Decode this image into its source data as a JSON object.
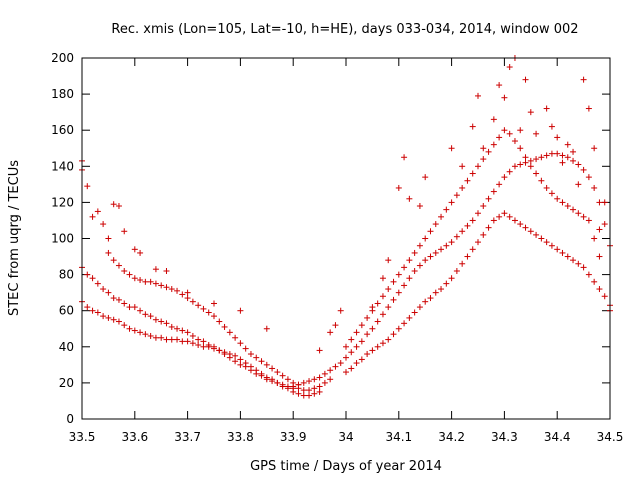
{
  "chart_data": {
    "type": "scatter",
    "title": "Rec. xmis (Lon=105, Lat=-10, h=HE), days 033-034, 2014, window 002",
    "xlabel": "GPS time / Days of year 2014",
    "ylabel": "STEC from uqrg / TECUs",
    "xlim": [
      33.5,
      34.5
    ],
    "ylim": [
      0,
      200
    ],
    "x_ticks": [
      "33.5",
      "33.6",
      "33.7",
      "33.8",
      "33.9",
      "34",
      "34.1",
      "34.2",
      "34.3",
      "34.4",
      "34.5"
    ],
    "y_ticks": [
      "0",
      "20",
      "40",
      "60",
      "80",
      "100",
      "120",
      "140",
      "160",
      "180",
      "200"
    ],
    "grid": false,
    "marker": "+",
    "color": "#cc0000",
    "series": [
      {
        "x": [
          33.5,
          33.51,
          33.52,
          33.53,
          33.54,
          33.55,
          33.56,
          33.57,
          33.58,
          33.59,
          33.6,
          33.61,
          33.62,
          33.63,
          33.64,
          33.65,
          33.66,
          33.67,
          33.68,
          33.69,
          33.7,
          33.71,
          33.72,
          33.73,
          33.74,
          33.75,
          33.76,
          33.77,
          33.78,
          33.79,
          33.8,
          33.81,
          33.82,
          33.83,
          33.84,
          33.85,
          33.86,
          33.87,
          33.88,
          33.89,
          33.9,
          33.91,
          33.92,
          33.93,
          33.94,
          33.95,
          33.96,
          33.97
        ],
        "y": [
          84,
          80,
          78,
          75,
          72,
          70,
          67,
          66,
          64,
          62,
          62,
          60,
          58,
          57,
          55,
          54,
          53,
          51,
          50,
          49,
          48,
          46,
          44,
          43,
          41,
          40,
          38,
          36,
          34,
          32,
          30,
          29,
          27,
          25,
          24,
          22,
          21,
          20,
          19,
          18,
          17,
          17,
          16,
          16,
          17,
          18,
          20,
          22
        ]
      },
      {
        "x": [
          33.5,
          33.51,
          33.52,
          33.53,
          33.54,
          33.55,
          33.56,
          33.57,
          33.58,
          33.59,
          33.6,
          33.61,
          33.62,
          33.63,
          33.64,
          33.65,
          33.66,
          33.67,
          33.68,
          33.69,
          33.7,
          33.71,
          33.72,
          33.73,
          33.74,
          33.75,
          33.76,
          33.77,
          33.78,
          33.79,
          33.8,
          33.81,
          33.82,
          33.83,
          33.84,
          33.85,
          33.86,
          33.87,
          33.88,
          33.89,
          33.9,
          33.91,
          33.92,
          33.93,
          33.94,
          33.95
        ],
        "y": [
          65,
          62,
          60,
          59,
          57,
          56,
          55,
          54,
          52,
          50,
          49,
          48,
          47,
          46,
          45,
          45,
          44,
          44,
          44,
          43,
          43,
          42,
          41,
          40,
          40,
          39,
          38,
          37,
          36,
          35,
          33,
          31,
          29,
          27,
          25,
          23,
          22,
          20,
          18,
          17,
          15,
          14,
          13,
          13,
          14,
          15
        ]
      },
      {
        "x": [
          33.55,
          33.56,
          33.57,
          33.58,
          33.59,
          33.6,
          33.61,
          33.62,
          33.63,
          33.64,
          33.65,
          33.66,
          33.67,
          33.68,
          33.69,
          33.7,
          33.71,
          33.72,
          33.73,
          33.74,
          33.75,
          33.76,
          33.77,
          33.78,
          33.79,
          33.8,
          33.81,
          33.82,
          33.83,
          33.84,
          33.85,
          33.86,
          33.87,
          33.88,
          33.89,
          33.9,
          33.91
        ],
        "y": [
          92,
          88,
          85,
          82,
          80,
          78,
          77,
          76,
          76,
          75,
          74,
          73,
          72,
          71,
          69,
          67,
          65,
          63,
          61,
          59,
          57,
          54,
          51,
          48,
          45,
          42,
          39,
          36,
          34,
          32,
          30,
          28,
          26,
          24,
          22,
          20,
          19
        ]
      },
      {
        "x": [
          33.9,
          33.91,
          33.92,
          33.93,
          33.94,
          33.95,
          33.96,
          33.97,
          33.98,
          33.99,
          34.0,
          34.01,
          34.02,
          34.03,
          34.04,
          34.05,
          34.06,
          34.07,
          34.08,
          34.09,
          34.1,
          34.11,
          34.12,
          34.13,
          34.14,
          34.15,
          34.16,
          34.17,
          34.18,
          34.19,
          34.2,
          34.21,
          34.22,
          34.23,
          34.24,
          34.25,
          34.26,
          34.27,
          34.28,
          34.29,
          34.3,
          34.31,
          34.32,
          34.33,
          34.34,
          34.35,
          34.36,
          34.37,
          34.38,
          34.39,
          34.4,
          34.41,
          34.42,
          34.43,
          34.44,
          34.45,
          34.46,
          34.47,
          34.48,
          34.49,
          34.5
        ],
        "y": [
          18,
          19,
          20,
          21,
          22,
          23,
          25,
          27,
          29,
          31,
          34,
          37,
          40,
          43,
          47,
          50,
          54,
          58,
          62,
          66,
          70,
          74,
          78,
          82,
          85,
          88,
          90,
          92,
          94,
          96,
          98,
          101,
          104,
          107,
          110,
          114,
          118,
          122,
          126,
          130,
          134,
          137,
          140,
          141,
          142,
          143,
          144,
          145,
          146,
          147,
          147,
          146,
          145,
          143,
          141,
          138,
          134,
          128,
          120,
          108,
          96
        ]
      },
      {
        "x": [
          34.0,
          34.01,
          34.02,
          34.03,
          34.04,
          34.05,
          34.06,
          34.07,
          34.08,
          34.09,
          34.1,
          34.11,
          34.12,
          34.13,
          34.14,
          34.15,
          34.16,
          34.17,
          34.18,
          34.19,
          34.2,
          34.21,
          34.22,
          34.23,
          34.24,
          34.25,
          34.26,
          34.27,
          34.28,
          34.29,
          34.3,
          34.31,
          34.32,
          34.33,
          34.34,
          34.35,
          34.36,
          34.37,
          34.38,
          34.39,
          34.4,
          34.41,
          34.42,
          34.43,
          34.44,
          34.45,
          34.46,
          34.47,
          34.48,
          34.49,
          34.5
        ],
        "y": [
          26,
          28,
          31,
          33,
          36,
          38,
          40,
          42,
          44,
          47,
          50,
          53,
          56,
          59,
          62,
          65,
          67,
          70,
          72,
          75,
          78,
          82,
          86,
          90,
          94,
          98,
          102,
          106,
          110,
          112,
          114,
          112,
          110,
          108,
          106,
          104,
          102,
          100,
          98,
          96,
          94,
          92,
          90,
          88,
          86,
          84,
          80,
          76,
          72,
          68,
          63
        ]
      },
      {
        "x": [
          34.0,
          34.01,
          34.02,
          34.03,
          34.04,
          34.05,
          34.06,
          34.07,
          34.08,
          34.09,
          34.1,
          34.11,
          34.12,
          34.13,
          34.14,
          34.15,
          34.16,
          34.17,
          34.18,
          34.19,
          34.2,
          34.21,
          34.22,
          34.23,
          34.24,
          34.25,
          34.26,
          34.27,
          34.28,
          34.29,
          34.3,
          34.31,
          34.32,
          34.33,
          34.34,
          34.35,
          34.36,
          34.37,
          34.38,
          34.39,
          34.4,
          34.41,
          34.42,
          34.43,
          34.44,
          34.45,
          34.46,
          34.47,
          34.48
        ],
        "y": [
          40,
          44,
          48,
          52,
          56,
          60,
          64,
          68,
          72,
          76,
          80,
          84,
          88,
          92,
          96,
          100,
          104,
          108,
          112,
          116,
          120,
          124,
          128,
          132,
          136,
          140,
          144,
          148,
          152,
          156,
          160,
          158,
          154,
          150,
          145,
          140,
          136,
          132,
          128,
          125,
          122,
          120,
          118,
          116,
          114,
          112,
          110,
          100,
          90
        ]
      },
      {
        "x": [
          33.5,
          33.5,
          33.51,
          33.52,
          33.53,
          33.54,
          33.55,
          33.56,
          33.57,
          33.58,
          33.6,
          33.61,
          33.64,
          33.66,
          33.7,
          33.75,
          33.8,
          33.85,
          33.95,
          33.97,
          33.98,
          33.99,
          34.05,
          34.07,
          34.08,
          34.1,
          34.11,
          34.12,
          34.14,
          34.15,
          34.2,
          34.22,
          34.24,
          34.25,
          34.26,
          34.28,
          34.29,
          34.3,
          34.31,
          34.32,
          34.33,
          34.34,
          34.35,
          34.36,
          34.38,
          34.39,
          34.4,
          34.41,
          34.42,
          34.43,
          34.44,
          34.45,
          34.46,
          34.47,
          34.48,
          34.49,
          34.5
        ],
        "y": [
          143,
          138,
          129,
          112,
          115,
          108,
          100,
          119,
          118,
          104,
          94,
          92,
          83,
          82,
          70,
          64,
          60,
          50,
          38,
          48,
          52,
          60,
          62,
          78,
          88,
          128,
          145,
          122,
          118,
          134,
          150,
          140,
          162,
          179,
          150,
          166,
          185,
          178,
          195,
          200,
          160,
          188,
          170,
          158,
          172,
          162,
          156,
          142,
          152,
          148,
          130,
          188,
          172,
          150,
          105,
          120,
          60
        ]
      }
    ]
  }
}
